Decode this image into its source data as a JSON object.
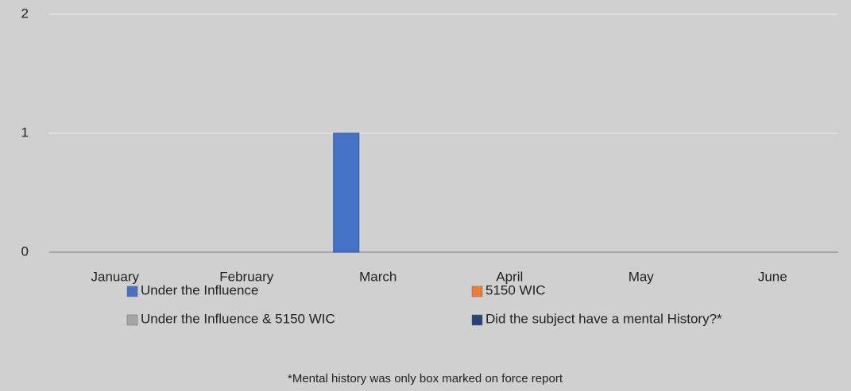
{
  "chart_data": {
    "type": "bar",
    "categories": [
      "January",
      "February",
      "March",
      "April",
      "May",
      "June"
    ],
    "series": [
      {
        "name": "Under the Influence",
        "color": "#4472c4",
        "values": [
          0,
          0,
          1,
          0,
          0,
          0
        ]
      },
      {
        "name": "5150 WIC",
        "color": "#ed7d31",
        "values": [
          0,
          0,
          0,
          0,
          0,
          0
        ]
      },
      {
        "name": "Under the Influence & 5150 WIC",
        "color": "#a5a5a5",
        "values": [
          0,
          0,
          0,
          0,
          0,
          0
        ]
      },
      {
        "name": "Did the subject have a mental History?*",
        "color": "#264478",
        "values": [
          0,
          0,
          0,
          0,
          0,
          0
        ]
      }
    ],
    "ylim": [
      0,
      2
    ],
    "yticks": [
      0,
      1,
      2
    ],
    "grid": true,
    "legend": "bottom",
    "annotation": "*Mental history was only box marked on force report"
  }
}
